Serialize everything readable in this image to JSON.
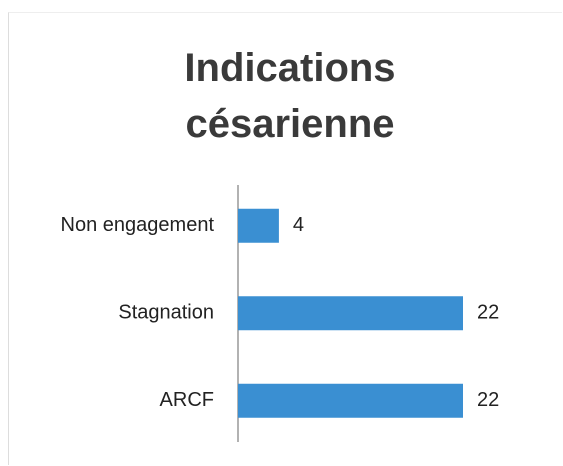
{
  "chart_data": {
    "type": "bar",
    "orientation": "horizontal",
    "title": "Indications césarienne",
    "categories": [
      "Non engagement",
      "Stagnation",
      "ARCF"
    ],
    "values": [
      4,
      22,
      22
    ],
    "color": "#3a8fd2"
  }
}
